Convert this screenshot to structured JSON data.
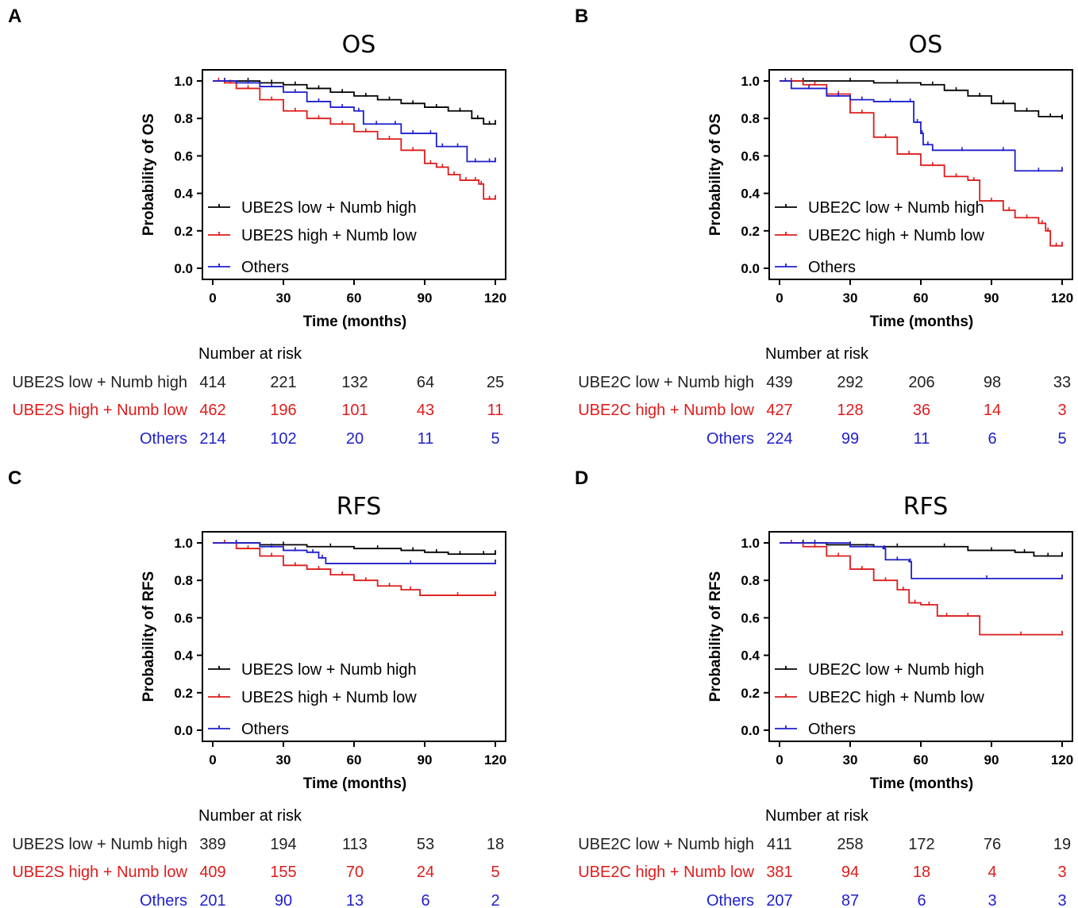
{
  "chart_data": [
    {
      "panel": "A",
      "title": "OS",
      "type": "line",
      "xlabel": "Time (months)",
      "ylabel": "Probability of OS",
      "xlim": [
        0,
        120
      ],
      "ylim": [
        0,
        1
      ],
      "xticks": [
        "0",
        "30",
        "60",
        "90",
        "120"
      ],
      "yticks": [
        "0.0",
        "0.2",
        "0.4",
        "0.6",
        "0.8",
        "1.0"
      ],
      "risk_title": "Number at risk",
      "series": [
        {
          "name": "UBE2S low + Numb high",
          "color": "#000000",
          "x": [
            0,
            10,
            20,
            30,
            40,
            50,
            60,
            70,
            80,
            90,
            100,
            110,
            115,
            120
          ],
          "y": [
            1.0,
            1.0,
            0.99,
            0.98,
            0.96,
            0.94,
            0.92,
            0.9,
            0.88,
            0.86,
            0.84,
            0.8,
            0.77,
            0.77
          ],
          "risk": [
            "414",
            "221",
            "132",
            "64",
            "25"
          ]
        },
        {
          "name": "UBE2S high + Numb low",
          "color": "#dd1c1c",
          "x": [
            0,
            5,
            10,
            20,
            30,
            40,
            50,
            60,
            70,
            80,
            90,
            95,
            100,
            105,
            110,
            113,
            115,
            120
          ],
          "y": [
            1.0,
            0.99,
            0.96,
            0.9,
            0.84,
            0.8,
            0.77,
            0.73,
            0.69,
            0.63,
            0.56,
            0.54,
            0.5,
            0.47,
            0.47,
            0.45,
            0.37,
            0.37
          ],
          "risk": [
            "462",
            "196",
            "101",
            "43",
            "11"
          ]
        },
        {
          "name": "Others",
          "color": "#1f1fcc",
          "x": [
            0,
            10,
            20,
            30,
            40,
            50,
            60,
            64,
            75,
            80,
            90,
            95,
            100,
            108,
            115,
            120
          ],
          "y": [
            1.0,
            0.99,
            0.97,
            0.94,
            0.89,
            0.86,
            0.84,
            0.77,
            0.77,
            0.72,
            0.72,
            0.65,
            0.65,
            0.57,
            0.57,
            0.57
          ],
          "risk": [
            "214",
            "102",
            "20",
            "11",
            "5"
          ]
        }
      ]
    },
    {
      "panel": "B",
      "title": "OS",
      "type": "line",
      "xlabel": "Time (months)",
      "ylabel": "Probability of OS",
      "xlim": [
        0,
        120
      ],
      "ylim": [
        0,
        1
      ],
      "xticks": [
        "0",
        "30",
        "60",
        "90",
        "120"
      ],
      "yticks": [
        "0.0",
        "0.2",
        "0.4",
        "0.6",
        "0.8",
        "1.0"
      ],
      "risk_title": "Number at risk",
      "series": [
        {
          "name": "UBE2C low + Numb high",
          "color": "#000000",
          "x": [
            0,
            20,
            40,
            60,
            70,
            80,
            90,
            100,
            110,
            120
          ],
          "y": [
            1.0,
            1.0,
            0.99,
            0.98,
            0.95,
            0.92,
            0.88,
            0.84,
            0.81,
            0.8
          ],
          "risk": [
            "439",
            "292",
            "206",
            "98",
            "33"
          ]
        },
        {
          "name": "UBE2C high + Numb low",
          "color": "#dd1c1c",
          "x": [
            0,
            10,
            20,
            30,
            40,
            50,
            60,
            70,
            80,
            85,
            95,
            100,
            110,
            113,
            115,
            120
          ],
          "y": [
            1.0,
            0.98,
            0.93,
            0.83,
            0.7,
            0.61,
            0.55,
            0.49,
            0.47,
            0.36,
            0.31,
            0.27,
            0.24,
            0.2,
            0.12,
            0.12
          ],
          "risk": [
            "427",
            "128",
            "36",
            "14",
            "3"
          ]
        },
        {
          "name": "Others",
          "color": "#1f1fcc",
          "x": [
            0,
            5,
            20,
            30,
            40,
            54,
            57,
            60,
            61,
            65,
            90,
            100,
            120
          ],
          "y": [
            1.0,
            0.96,
            0.92,
            0.9,
            0.89,
            0.89,
            0.78,
            0.72,
            0.66,
            0.63,
            0.63,
            0.52,
            0.52
          ],
          "risk": [
            "224",
            "99",
            "11",
            "6",
            "5"
          ]
        }
      ]
    },
    {
      "panel": "C",
      "title": "RFS",
      "type": "line",
      "xlabel": "Time (months)",
      "ylabel": "Probability of RFS",
      "xlim": [
        0,
        120
      ],
      "ylim": [
        0,
        1
      ],
      "xticks": [
        "0",
        "30",
        "60",
        "90",
        "120"
      ],
      "yticks": [
        "0.0",
        "0.2",
        "0.4",
        "0.6",
        "0.8",
        "1.0"
      ],
      "risk_title": "Number at risk",
      "series": [
        {
          "name": "UBE2S low + Numb high",
          "color": "#000000",
          "x": [
            0,
            20,
            40,
            60,
            80,
            90,
            100,
            110,
            120
          ],
          "y": [
            1.0,
            0.99,
            0.98,
            0.97,
            0.96,
            0.95,
            0.94,
            0.94,
            0.94
          ],
          "risk": [
            "389",
            "194",
            "113",
            "53",
            "18"
          ]
        },
        {
          "name": "UBE2S high + Numb low",
          "color": "#dd1c1c",
          "x": [
            0,
            10,
            20,
            30,
            40,
            50,
            60,
            70,
            80,
            88,
            120
          ],
          "y": [
            1.0,
            0.97,
            0.93,
            0.88,
            0.86,
            0.83,
            0.8,
            0.77,
            0.75,
            0.72,
            0.72
          ],
          "risk": [
            "409",
            "155",
            "70",
            "24",
            "5"
          ]
        },
        {
          "name": "Others",
          "color": "#1f1fcc",
          "x": [
            0,
            20,
            30,
            40,
            45,
            48,
            120
          ],
          "y": [
            1.0,
            0.98,
            0.96,
            0.95,
            0.92,
            0.89,
            0.89
          ],
          "risk": [
            "201",
            "90",
            "13",
            "6",
            "2"
          ]
        }
      ]
    },
    {
      "panel": "D",
      "title": "RFS",
      "type": "line",
      "xlabel": "Time (months)",
      "ylabel": "Probability of RFS",
      "xlim": [
        0,
        120
      ],
      "ylim": [
        0,
        1
      ],
      "xticks": [
        "0",
        "30",
        "60",
        "90",
        "120"
      ],
      "yticks": [
        "0.0",
        "0.2",
        "0.4",
        "0.6",
        "0.8",
        "1.0"
      ],
      "risk_title": "Number at risk",
      "series": [
        {
          "name": "UBE2C low + Numb high",
          "color": "#000000",
          "x": [
            0,
            20,
            40,
            60,
            80,
            100,
            108,
            120
          ],
          "y": [
            1.0,
            0.99,
            0.98,
            0.98,
            0.96,
            0.95,
            0.93,
            0.93
          ],
          "risk": [
            "411",
            "258",
            "172",
            "76",
            "19"
          ]
        },
        {
          "name": "UBE2C high + Numb low",
          "color": "#dd1c1c",
          "x": [
            0,
            10,
            20,
            30,
            40,
            50,
            55,
            60,
            67,
            75,
            85,
            120
          ],
          "y": [
            1.0,
            0.98,
            0.93,
            0.86,
            0.8,
            0.75,
            0.68,
            0.67,
            0.61,
            0.61,
            0.51,
            0.51
          ],
          "risk": [
            "381",
            "94",
            "18",
            "4",
            "3"
          ]
        },
        {
          "name": "Others",
          "color": "#1f1fcc",
          "x": [
            0,
            30,
            44,
            45,
            55,
            56,
            120
          ],
          "y": [
            1.0,
            0.98,
            0.97,
            0.91,
            0.9,
            0.81,
            0.81
          ],
          "risk": [
            "207",
            "87",
            "6",
            "3",
            "3"
          ]
        }
      ]
    }
  ]
}
